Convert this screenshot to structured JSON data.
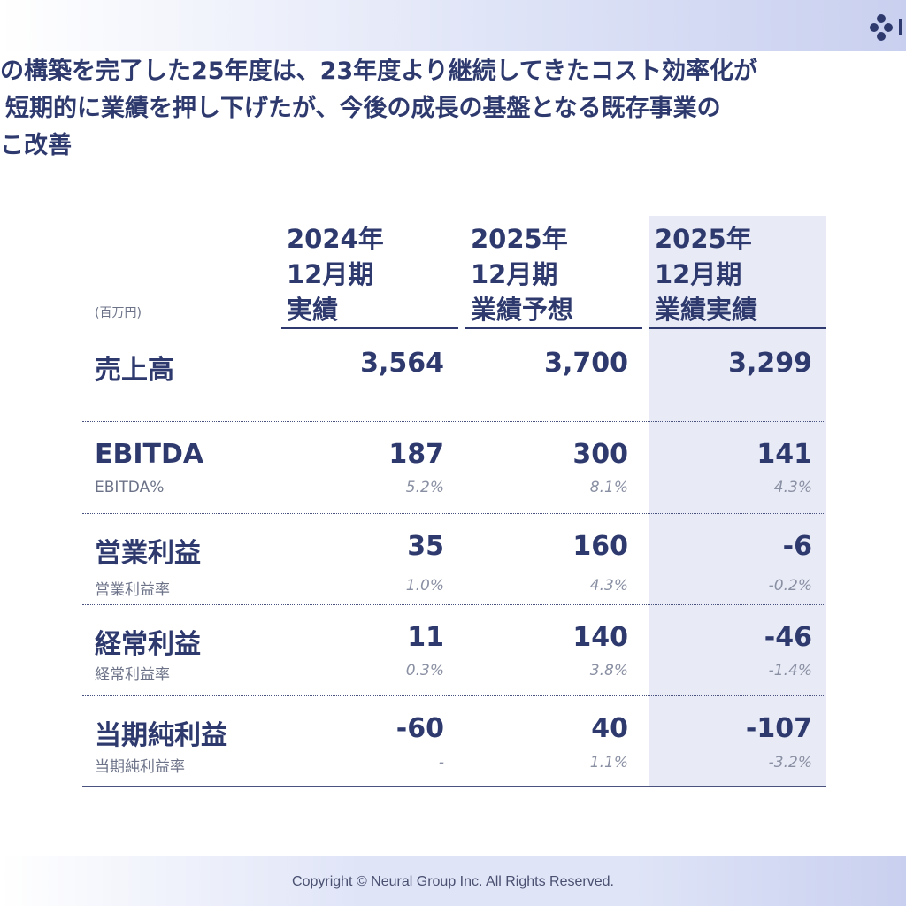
{
  "headline": {
    "line1": "の構築を完了した25年度は、23年度より継続してきたコスト効率化が",
    "line2": "短期的に業績を押し下げたが、今後の成長の基盤となる既存事業の",
    "line3": "こ改善"
  },
  "logo_icon": "dots-cluster-icon",
  "table": {
    "unit": "(百万円)",
    "columns": [
      {
        "line1": "2024年",
        "line2": "12月期",
        "line3": "実績"
      },
      {
        "line1": "2025年",
        "line2": "12月期",
        "line3": "業績予想"
      },
      {
        "line1": "2025年",
        "line2": "12月期",
        "line3": "業績実績"
      }
    ],
    "rows": [
      {
        "label": "売上高",
        "sub": "",
        "values": [
          "3,564",
          "3,700",
          "3,299"
        ],
        "pcts": [
          "",
          "",
          ""
        ]
      },
      {
        "label": "EBITDA",
        "sub": "EBITDA%",
        "values": [
          "187",
          "300",
          "141"
        ],
        "pcts": [
          "5.2%",
          "8.1%",
          "4.3%"
        ]
      },
      {
        "label": "営業利益",
        "sub": "営業利益率",
        "values": [
          "35",
          "160",
          "-6"
        ],
        "pcts": [
          "1.0%",
          "4.3%",
          "-0.2%"
        ]
      },
      {
        "label": "経常利益",
        "sub": "経常利益率",
        "values": [
          "11",
          "140",
          "-46"
        ],
        "pcts": [
          "0.3%",
          "3.8%",
          "-1.4%"
        ]
      },
      {
        "label": "当期純利益",
        "sub": "当期純利益率",
        "values": [
          "-60",
          "40",
          "-107"
        ],
        "pcts": [
          "-",
          "1.1%",
          "-3.2%"
        ]
      }
    ]
  },
  "footer": {
    "copyright": "Copyright © Neural Group Inc. All Rights Reserved."
  },
  "colors": {
    "navy": "#2e3a6e",
    "highlight_column": "#e8eaf6",
    "band": "#c9d0ef"
  }
}
